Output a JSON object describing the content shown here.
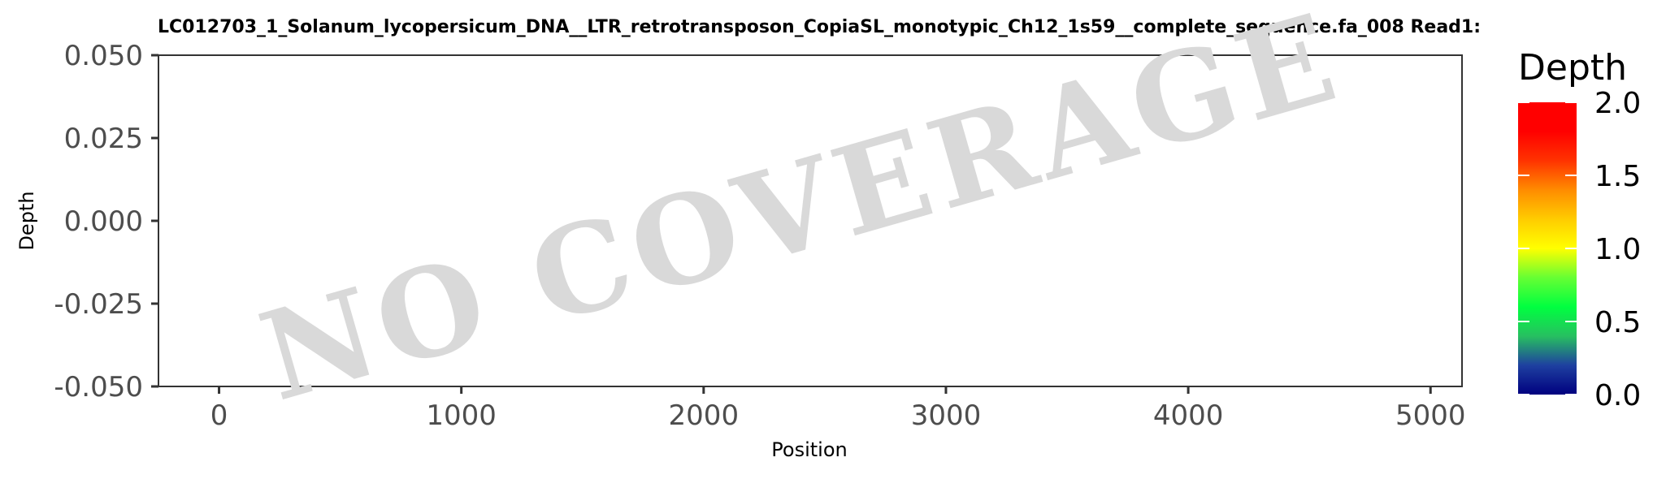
{
  "chart_data": {
    "type": "line",
    "title": "LC012703_1_Solanum_lycopersicum_DNA__LTR_retrotransposon_CopiaSL_monotypic_Ch12_1s59__complete_sequence.fa_008   Read1:",
    "xlabel": "Position",
    "ylabel": "Depth",
    "xlim": [
      -250,
      5130
    ],
    "ylim": [
      -0.05,
      0.05
    ],
    "x_ticks": [
      0,
      1000,
      2000,
      3000,
      4000,
      5000
    ],
    "x_tick_labels": [
      "0",
      "1000",
      "2000",
      "3000",
      "4000",
      "5000"
    ],
    "y_ticks": [
      0.05,
      0.025,
      0,
      -0.025,
      -0.05
    ],
    "y_tick_labels": [
      "0.050",
      "0.025",
      "0.000",
      "-0.025",
      "-0.050"
    ],
    "series": [],
    "watermark": "NO COVERAGE",
    "grid": false,
    "legend": {
      "title": "Depth",
      "position": "right",
      "range": [
        0,
        2
      ],
      "ticks": [
        2.0,
        1.5,
        1.0,
        0.5,
        0.0
      ],
      "tick_labels": [
        "2.0",
        "1.5",
        "1.0",
        "0.5",
        "0.0"
      ],
      "colors": [
        "#00007f",
        "#1e40a0",
        "#27c060",
        "#00ff40",
        "#66ff33",
        "#ffff00",
        "#ffcc00",
        "#ff8c00",
        "#ff3300",
        "#ff0000",
        "#ff0000"
      ]
    }
  }
}
